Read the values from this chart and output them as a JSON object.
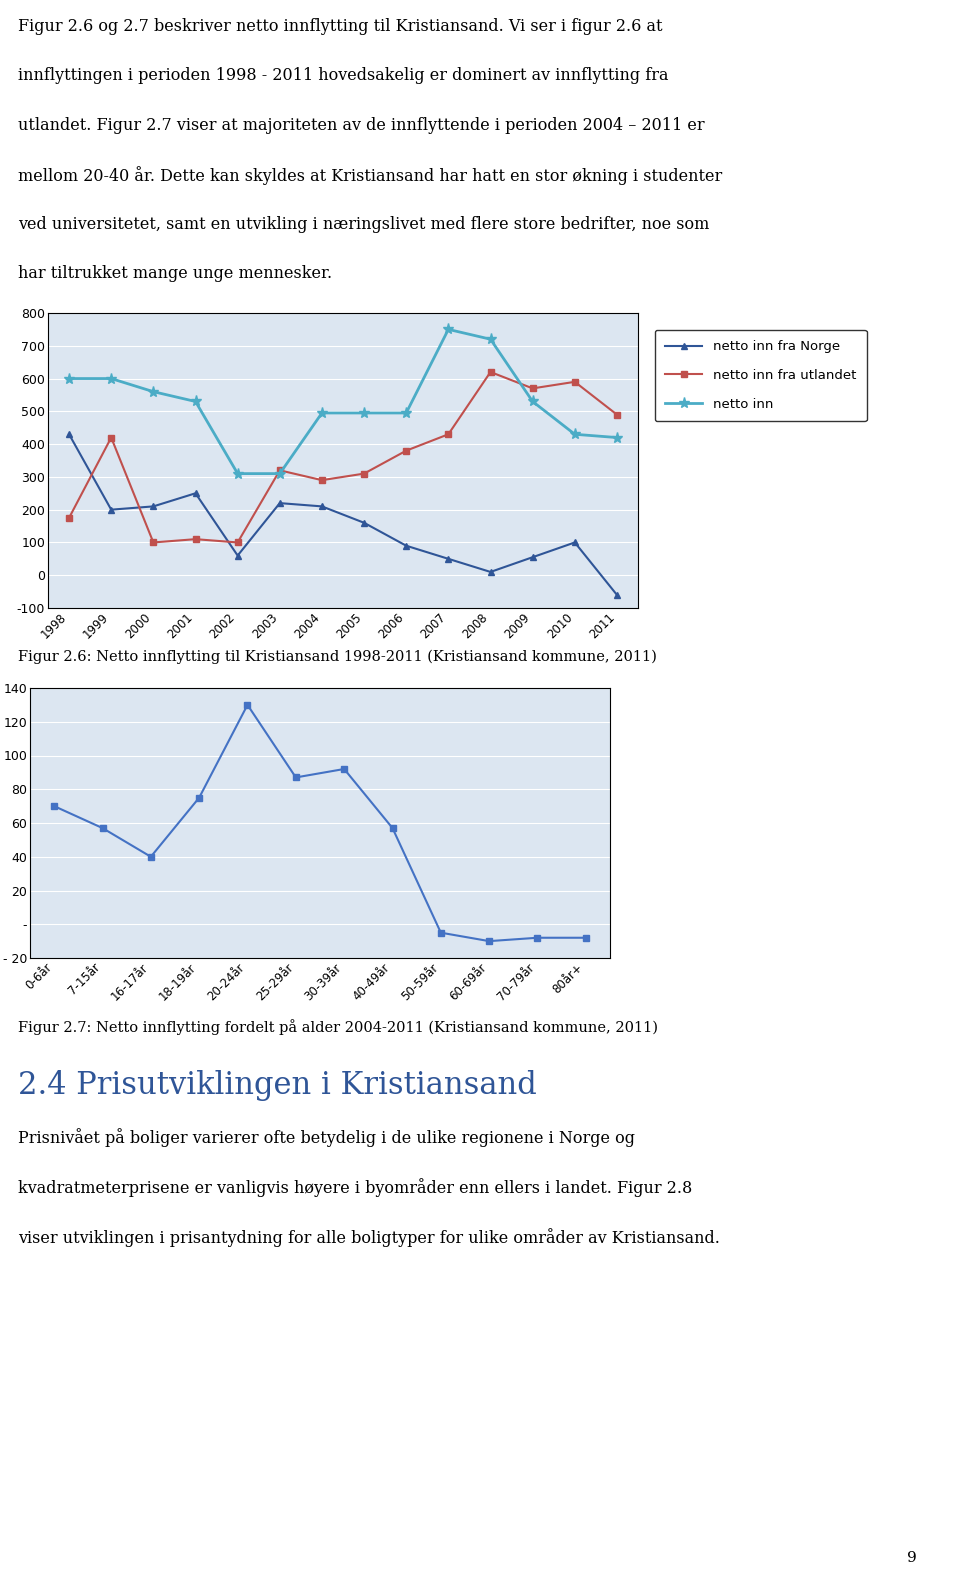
{
  "text_lines": [
    "Figur 2.6 og 2.7 beskriver netto innflytting til Kristiansand. Vi ser i figur 2.6 at",
    "innflyttingen i perioden 1998 - 2011 hovedsakelig er dominert av innflytting fra",
    "utlandet. Figur 2.7 viser at majoriteten av de innflyttende i perioden 2004 – 2011 er",
    "mellom 20-40 år. Dette kan skyldes at Kristiansand har hatt en stor økning i studenter",
    "ved universitetet, samt en utvikling i næringslivet med flere store bedrifter, noe som",
    "har tiltrukket mange unge mennesker."
  ],
  "chart1_caption": "Figur 2.6: Netto innflytting til Kristiansand 1998-2011 (Kristiansand kommune, 2011)",
  "chart2_caption": "Figur 2.7: Netto innflytting fordelt på alder 2004-2011 (Kristiansand kommune, 2011)",
  "section_header": "2.4 Prisutviklingen i Kristiansand",
  "text_paragraph2_lines": [
    "Prisnivået på boliger varierer ofte betydelig i de ulike regionene i Norge og",
    "kvadratmeterprisene er vanligvis høyere i byområder enn ellers i landet. Figur 2.8",
    "viser utviklingen i prisantydning for alle boligtyper for ulike områder av Kristiansand."
  ],
  "page_number": "9",
  "chart1_years": [
    1998,
    1999,
    2000,
    2001,
    2002,
    2003,
    2004,
    2005,
    2006,
    2007,
    2008,
    2009,
    2010,
    2011
  ],
  "chart1_norge": [
    430,
    200,
    210,
    250,
    60,
    220,
    210,
    160,
    90,
    50,
    10,
    55,
    100,
    -60
  ],
  "chart1_utlandet": [
    175,
    420,
    100,
    110,
    100,
    320,
    290,
    310,
    380,
    430,
    620,
    570,
    590,
    490
  ],
  "chart1_netto": [
    600,
    600,
    560,
    530,
    310,
    310,
    495,
    495,
    495,
    750,
    720,
    530,
    430,
    420
  ],
  "chart1_ylim": [
    -100,
    800
  ],
  "chart1_yticks": [
    -100,
    0,
    100,
    200,
    300,
    400,
    500,
    600,
    700,
    800
  ],
  "chart1_legend": [
    "netto inn fra Norge",
    "netto inn fra utlandet",
    "netto inn"
  ],
  "chart1_colors": [
    "#2F5597",
    "#C0504D",
    "#4BACC6"
  ],
  "chart2_ages": [
    "0-6år",
    "7-15år",
    "16-17år",
    "18-19år",
    "20-24år",
    "25-29år",
    "30-39år",
    "40-49år",
    "50-59år",
    "60-69år",
    "70-79år",
    "80år+"
  ],
  "chart2_values": [
    70,
    57,
    40,
    75,
    130,
    87,
    92,
    57,
    -5,
    -10,
    -8,
    -8
  ],
  "chart2_ylim": [
    -20,
    140
  ],
  "chart2_yticks": [
    -20,
    0,
    20,
    40,
    60,
    80,
    100,
    120,
    140
  ],
  "chart2_color": "#4472C4",
  "plot_bg_color": "#DCE6F1"
}
